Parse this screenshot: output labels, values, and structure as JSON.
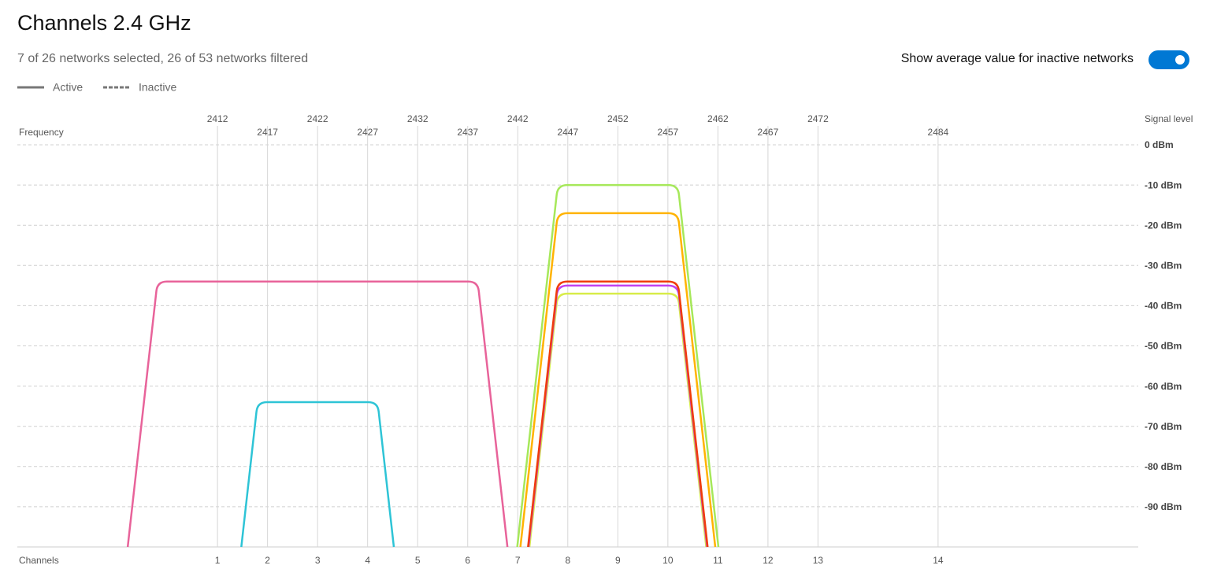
{
  "chart_data": {
    "type": "channel",
    "title": "Channels 2.4 GHz",
    "subtitle": "7 of 26 networks selected, 26 of 53 networks filtered",
    "toggle": {
      "label": "Show average value for inactive networks",
      "on": true
    },
    "legend": [
      {
        "label": "Active",
        "style": "solid"
      },
      {
        "label": "Inactive",
        "style": "dashed"
      }
    ],
    "x_label": "Frequency",
    "x2_label": "Channels",
    "y_label": "Signal level",
    "xlim": [
      2392,
      2504
    ],
    "ylim": [
      -100,
      0
    ],
    "xticks": [
      2412,
      2417,
      2422,
      2427,
      2432,
      2437,
      2442,
      2447,
      2452,
      2457,
      2462,
      2467,
      2472,
      2484
    ],
    "channel_ticks": [
      {
        "value": 2412,
        "label": "1"
      },
      {
        "value": 2417,
        "label": "2"
      },
      {
        "value": 2422,
        "label": "3"
      },
      {
        "value": 2427,
        "label": "4"
      },
      {
        "value": 2432,
        "label": "5"
      },
      {
        "value": 2437,
        "label": "6"
      },
      {
        "value": 2442,
        "label": "7"
      },
      {
        "value": 2447,
        "label": "8"
      },
      {
        "value": 2452,
        "label": "9"
      },
      {
        "value": 2457,
        "label": "10"
      },
      {
        "value": 2462,
        "label": "11"
      },
      {
        "value": 2467,
        "label": "12"
      },
      {
        "value": 2472,
        "label": "13"
      },
      {
        "value": 2484,
        "label": "14"
      }
    ],
    "yticks": [
      {
        "value": 0,
        "label": "0 dBm"
      },
      {
        "value": -10,
        "label": "-10 dBm"
      },
      {
        "value": -20,
        "label": "-20 dBm"
      },
      {
        "value": -30,
        "label": "-30 dBm"
      },
      {
        "value": -40,
        "label": "-40 dBm"
      },
      {
        "value": -50,
        "label": "-50 dBm"
      },
      {
        "value": -60,
        "label": "-60 dBm"
      },
      {
        "value": -70,
        "label": "-70 dBm"
      },
      {
        "value": -80,
        "label": "-80 dBm"
      },
      {
        "value": -90,
        "label": "-90 dBm"
      }
    ],
    "series": [
      {
        "color": "#e8639a",
        "center": 2422,
        "width": 40,
        "signal": -34
      },
      {
        "color": "#2ec4d6",
        "center": 2422,
        "width": 20,
        "signal": -64
      },
      {
        "color": "#a6e85a",
        "center": 2452,
        "width": 20,
        "signal": -10
      },
      {
        "color": "#ffb300",
        "center": 2452,
        "width": 20,
        "signal": -17
      },
      {
        "color": "#d8ec4a",
        "center": 2452,
        "width": 20,
        "signal": -37
      },
      {
        "color": "#c040f0",
        "center": 2452,
        "width": 20,
        "signal": -35
      },
      {
        "color": "#f03c0a",
        "center": 2452,
        "width": 20,
        "signal": -34
      }
    ]
  }
}
